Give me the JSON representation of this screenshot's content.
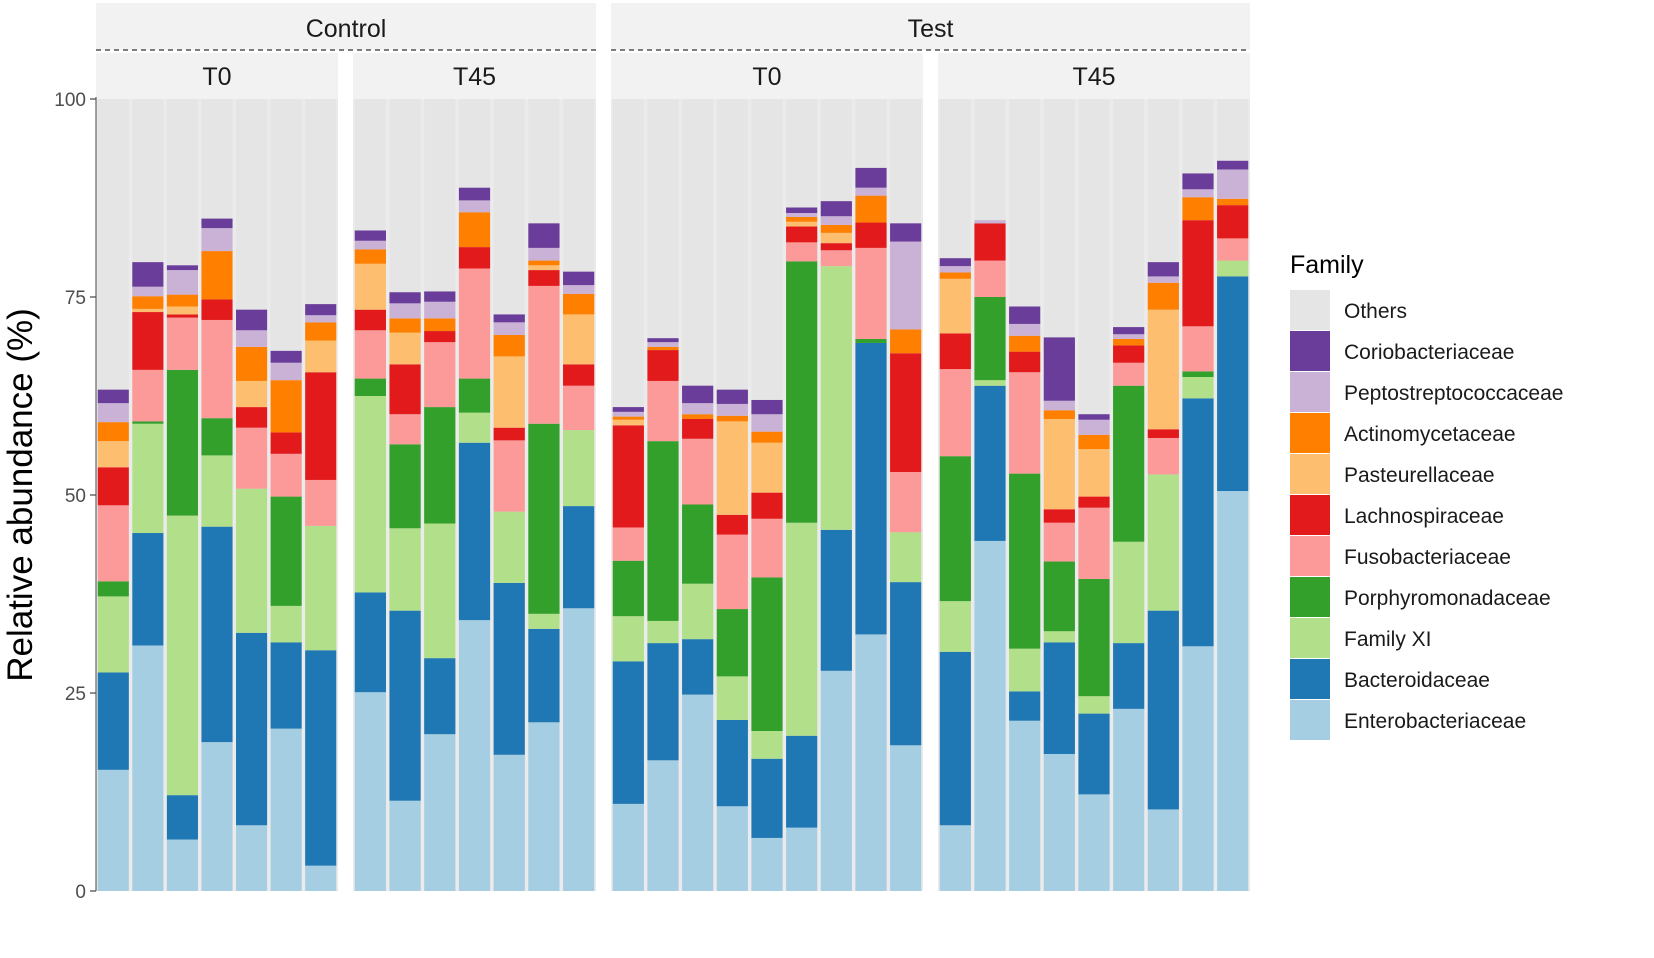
{
  "chart_data": {
    "type": "bar",
    "stacked": true,
    "ylabel": "Relative abundance (%)",
    "xlabel": "",
    "ylim": [
      0,
      100
    ],
    "yticks": [
      0,
      25,
      50,
      75,
      100
    ],
    "ytick_labels": [
      "0",
      "25",
      "50",
      "75",
      "100"
    ],
    "legend_title": "Family",
    "legend_position": "right",
    "families": [
      {
        "name": "Others",
        "color": "#e5e5e5"
      },
      {
        "name": "Coriobacteriaceae",
        "color": "#6a3d9a"
      },
      {
        "name": "Peptostreptococcaceae",
        "color": "#cab2d6"
      },
      {
        "name": "Actinomycetaceae",
        "color": "#ff7f00"
      },
      {
        "name": "Pasteurellaceae",
        "color": "#fdbf6f"
      },
      {
        "name": "Lachnospiraceae",
        "color": "#e31a1c"
      },
      {
        "name": "Fusobacteriaceae",
        "color": "#fb9a99"
      },
      {
        "name": "Porphyromonadaceae",
        "color": "#33a02c"
      },
      {
        "name": "Family XI",
        "color": "#b2df8a"
      },
      {
        "name": "Bacteroidaceae",
        "color": "#1f78b4"
      },
      {
        "name": "Enterobacteriaceae",
        "color": "#a6cee3"
      }
    ],
    "stack_order_bottom_to_top": [
      "Enterobacteriaceae",
      "Bacteroidaceae",
      "Family XI",
      "Porphyromonadaceae",
      "Fusobacteriaceae",
      "Lachnospiraceae",
      "Pasteurellaceae",
      "Actinomycetaceae",
      "Peptostreptococcaceae",
      "Coriobacteriaceae"
    ],
    "groups": [
      {
        "label": "Control",
        "panels": [
          {
            "label": "T0",
            "bars": [
              [
                15.3,
                12.3,
                9.6,
                1.9,
                9.6,
                4.8,
                3.3,
                2.4,
                2.4,
                1.7
              ],
              [
                31.0,
                14.2,
                13.8,
                0.3,
                6.5,
                7.3,
                0.4,
                1.6,
                1.2,
                3.1
              ],
              [
                6.5,
                5.6,
                35.3,
                18.4,
                6.6,
                0.4,
                1.0,
                1.5,
                3.1,
                0.6
              ],
              [
                18.8,
                27.2,
                9.0,
                4.7,
                12.4,
                2.6,
                0.0,
                6.1,
                2.9,
                1.2
              ],
              [
                8.3,
                24.3,
                18.2,
                0.0,
                7.7,
                2.6,
                3.3,
                4.3,
                2.1,
                2.6
              ],
              [
                20.5,
                10.9,
                4.6,
                13.8,
                5.4,
                2.7,
                0.0,
                6.6,
                2.2,
                1.5
              ],
              [
                3.2,
                27.2,
                15.7,
                0.0,
                5.8,
                13.6,
                4.0,
                2.3,
                0.9,
                1.4
              ]
            ]
          },
          {
            "label": "T45",
            "bars": [
              [
                25.1,
                12.6,
                24.8,
                2.2,
                6.1,
                2.6,
                5.8,
                1.8,
                1.1,
                1.3
              ],
              [
                11.4,
                24.0,
                10.4,
                10.6,
                3.8,
                6.3,
                4.0,
                1.8,
                1.9,
                1.4
              ],
              [
                19.8,
                9.6,
                17.0,
                14.7,
                8.2,
                1.4,
                0.0,
                1.6,
                2.1,
                1.3
              ],
              [
                34.2,
                22.4,
                3.8,
                4.3,
                13.9,
                2.7,
                0.0,
                4.4,
                1.5,
                1.6
              ],
              [
                17.2,
                21.7,
                9.0,
                0.0,
                9.0,
                1.6,
                9.0,
                2.7,
                1.6,
                1.0
              ],
              [
                21.3,
                11.8,
                1.9,
                24.0,
                17.4,
                2.0,
                0.6,
                0.6,
                1.6,
                3.1
              ],
              [
                35.7,
                12.9,
                9.6,
                0.0,
                5.6,
                2.7,
                6.3,
                2.6,
                1.1,
                1.7
              ]
            ]
          }
        ]
      },
      {
        "label": "Test",
        "panels": [
          {
            "label": "T0",
            "bars": [
              [
                11.0,
                18.0,
                5.7,
                7.0,
                4.2,
                12.9,
                0.7,
                0.4,
                0.6,
                0.6
              ],
              [
                16.5,
                14.8,
                2.8,
                22.7,
                7.6,
                3.9,
                0.0,
                0.4,
                0.6,
                0.5
              ],
              [
                24.8,
                7.0,
                7.0,
                10.0,
                8.3,
                2.5,
                0.0,
                0.6,
                1.4,
                2.2
              ],
              [
                10.7,
                10.9,
                5.5,
                8.5,
                9.4,
                2.5,
                11.8,
                0.7,
                1.5,
                1.8
              ],
              [
                6.7,
                10.0,
                3.5,
                19.4,
                7.4,
                3.3,
                6.3,
                1.4,
                2.2,
                1.8
              ],
              [
                8.0,
                11.6,
                26.9,
                33.0,
                2.4,
                2.0,
                0.6,
                0.6,
                0.5,
                0.7
              ],
              [
                27.8,
                17.8,
                33.3,
                0.0,
                2.0,
                0.9,
                1.3,
                1.0,
                1.1,
                1.9
              ],
              [
                32.4,
                36.8,
                0.0,
                0.5,
                11.5,
                3.2,
                0.0,
                3.4,
                1.0,
                2.5
              ],
              [
                18.4,
                20.6,
                6.3,
                0.0,
                7.6,
                15.0,
                0.0,
                3.0,
                11.1,
                2.3
              ]
            ]
          },
          {
            "label": "T45",
            "bars": [
              [
                8.3,
                21.9,
                6.4,
                18.3,
                11.0,
                4.5,
                6.9,
                0.8,
                0.8,
                1.0
              ],
              [
                44.2,
                19.6,
                0.7,
                10.5,
                4.6,
                4.7,
                0.0,
                0.0,
                0.4,
                0.0
              ],
              [
                21.5,
                3.7,
                5.4,
                22.1,
                12.8,
                2.6,
                0.0,
                2.0,
                1.5,
                2.2
              ],
              [
                17.3,
                14.1,
                1.4,
                8.8,
                4.9,
                1.7,
                11.4,
                1.1,
                1.2,
                8.0
              ],
              [
                12.2,
                10.2,
                2.2,
                14.8,
                9.0,
                1.4,
                6.0,
                1.8,
                1.9,
                0.7
              ],
              [
                23.0,
                8.3,
                12.8,
                19.7,
                2.9,
                2.2,
                0.0,
                0.8,
                0.6,
                0.9
              ],
              [
                10.3,
                25.1,
                17.2,
                0.0,
                4.6,
                1.1,
                15.1,
                3.4,
                0.8,
                1.8
              ],
              [
                30.9,
                31.3,
                2.7,
                0.7,
                5.7,
                13.4,
                0.0,
                2.9,
                1.0,
                2.0
              ],
              [
                50.5,
                27.1,
                2.0,
                0.0,
                2.8,
                4.2,
                0.0,
                0.8,
                3.7,
                1.1
              ]
            ]
          }
        ]
      }
    ]
  }
}
